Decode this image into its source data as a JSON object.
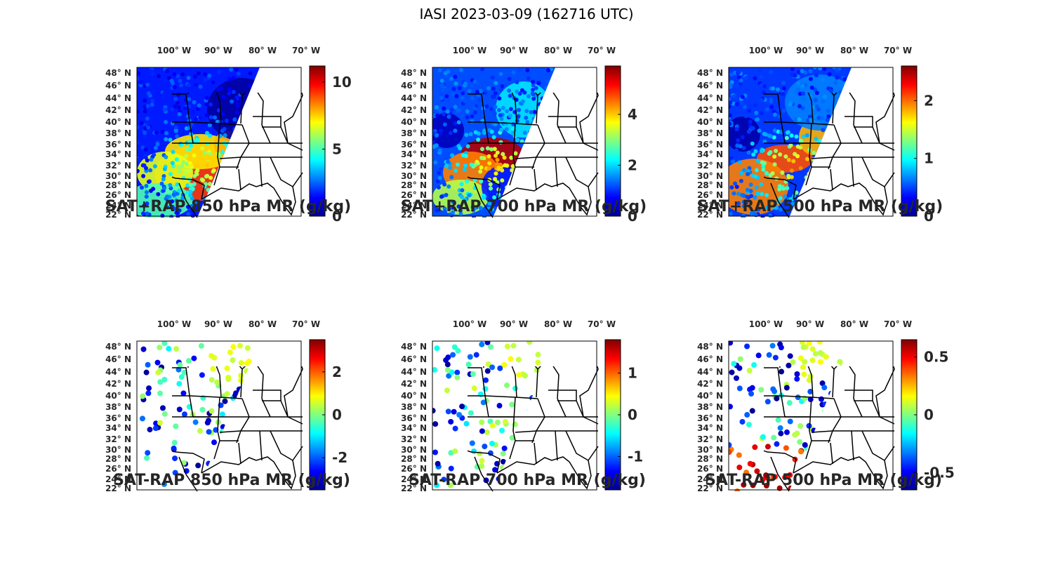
{
  "figure": {
    "title": "IASI 2023-03-09 (162716 UTC)"
  },
  "map": {
    "lon_ticks": [
      "100° W",
      "90° W",
      "80° W",
      "70° W"
    ],
    "lat_ticks": [
      "48° N",
      "46° N",
      "44° N",
      "42° N",
      "40° N",
      "38° N",
      "36° N",
      "34° N",
      "32° N",
      "30° N",
      "28° N",
      "26° N",
      "24° N",
      "22° N"
    ]
  },
  "colormap": [
    "#00008f",
    "#0000ff",
    "#0080ff",
    "#00ffff",
    "#80ff80",
    "#ffff00",
    "#ff8000",
    "#ff0000",
    "#800000"
  ],
  "colors": {
    "boundary": "#000000",
    "panel_border": "#000000"
  },
  "panels": [
    {
      "id": "sat-plus-rap-850",
      "title": "SAT+RAP 850 hPa MR (g/kg)",
      "colorbar": {
        "ticks": [
          "10",
          "5",
          "0"
        ],
        "min": 0,
        "max": 11.2
      }
    },
    {
      "id": "sat-plus-rap-700",
      "title": "SAT+RAP 700 hPa MR (g/kg)",
      "colorbar": {
        "ticks": [
          "4",
          "2",
          "0"
        ],
        "min": 0,
        "max": 5.9
      }
    },
    {
      "id": "sat-plus-rap-500",
      "title": "SAT+RAP 500 hPa MR (g/kg)",
      "colorbar": {
        "ticks": [
          "2",
          "1",
          "0"
        ],
        "min": 0,
        "max": 2.6
      }
    },
    {
      "id": "sat-minus-rap-850",
      "title": "SAT-RAP 850 hPa MR (g/kg)",
      "colorbar": {
        "ticks": [
          "2",
          "0",
          "-2"
        ],
        "min": -3.5,
        "max": 3.5
      }
    },
    {
      "id": "sat-minus-rap-700",
      "title": "SAT-RAP 700 hPa MR (g/kg)",
      "colorbar": {
        "ticks": [
          "1",
          "0",
          "-1"
        ],
        "min": -1.8,
        "max": 1.8
      }
    },
    {
      "id": "sat-minus-rap-500",
      "title": "SAT-RAP 500 hPa MR (g/kg)",
      "colorbar": {
        "ticks": [
          "0.5",
          "0",
          "-0.5"
        ],
        "min": -0.65,
        "max": 0.65
      }
    }
  ]
}
